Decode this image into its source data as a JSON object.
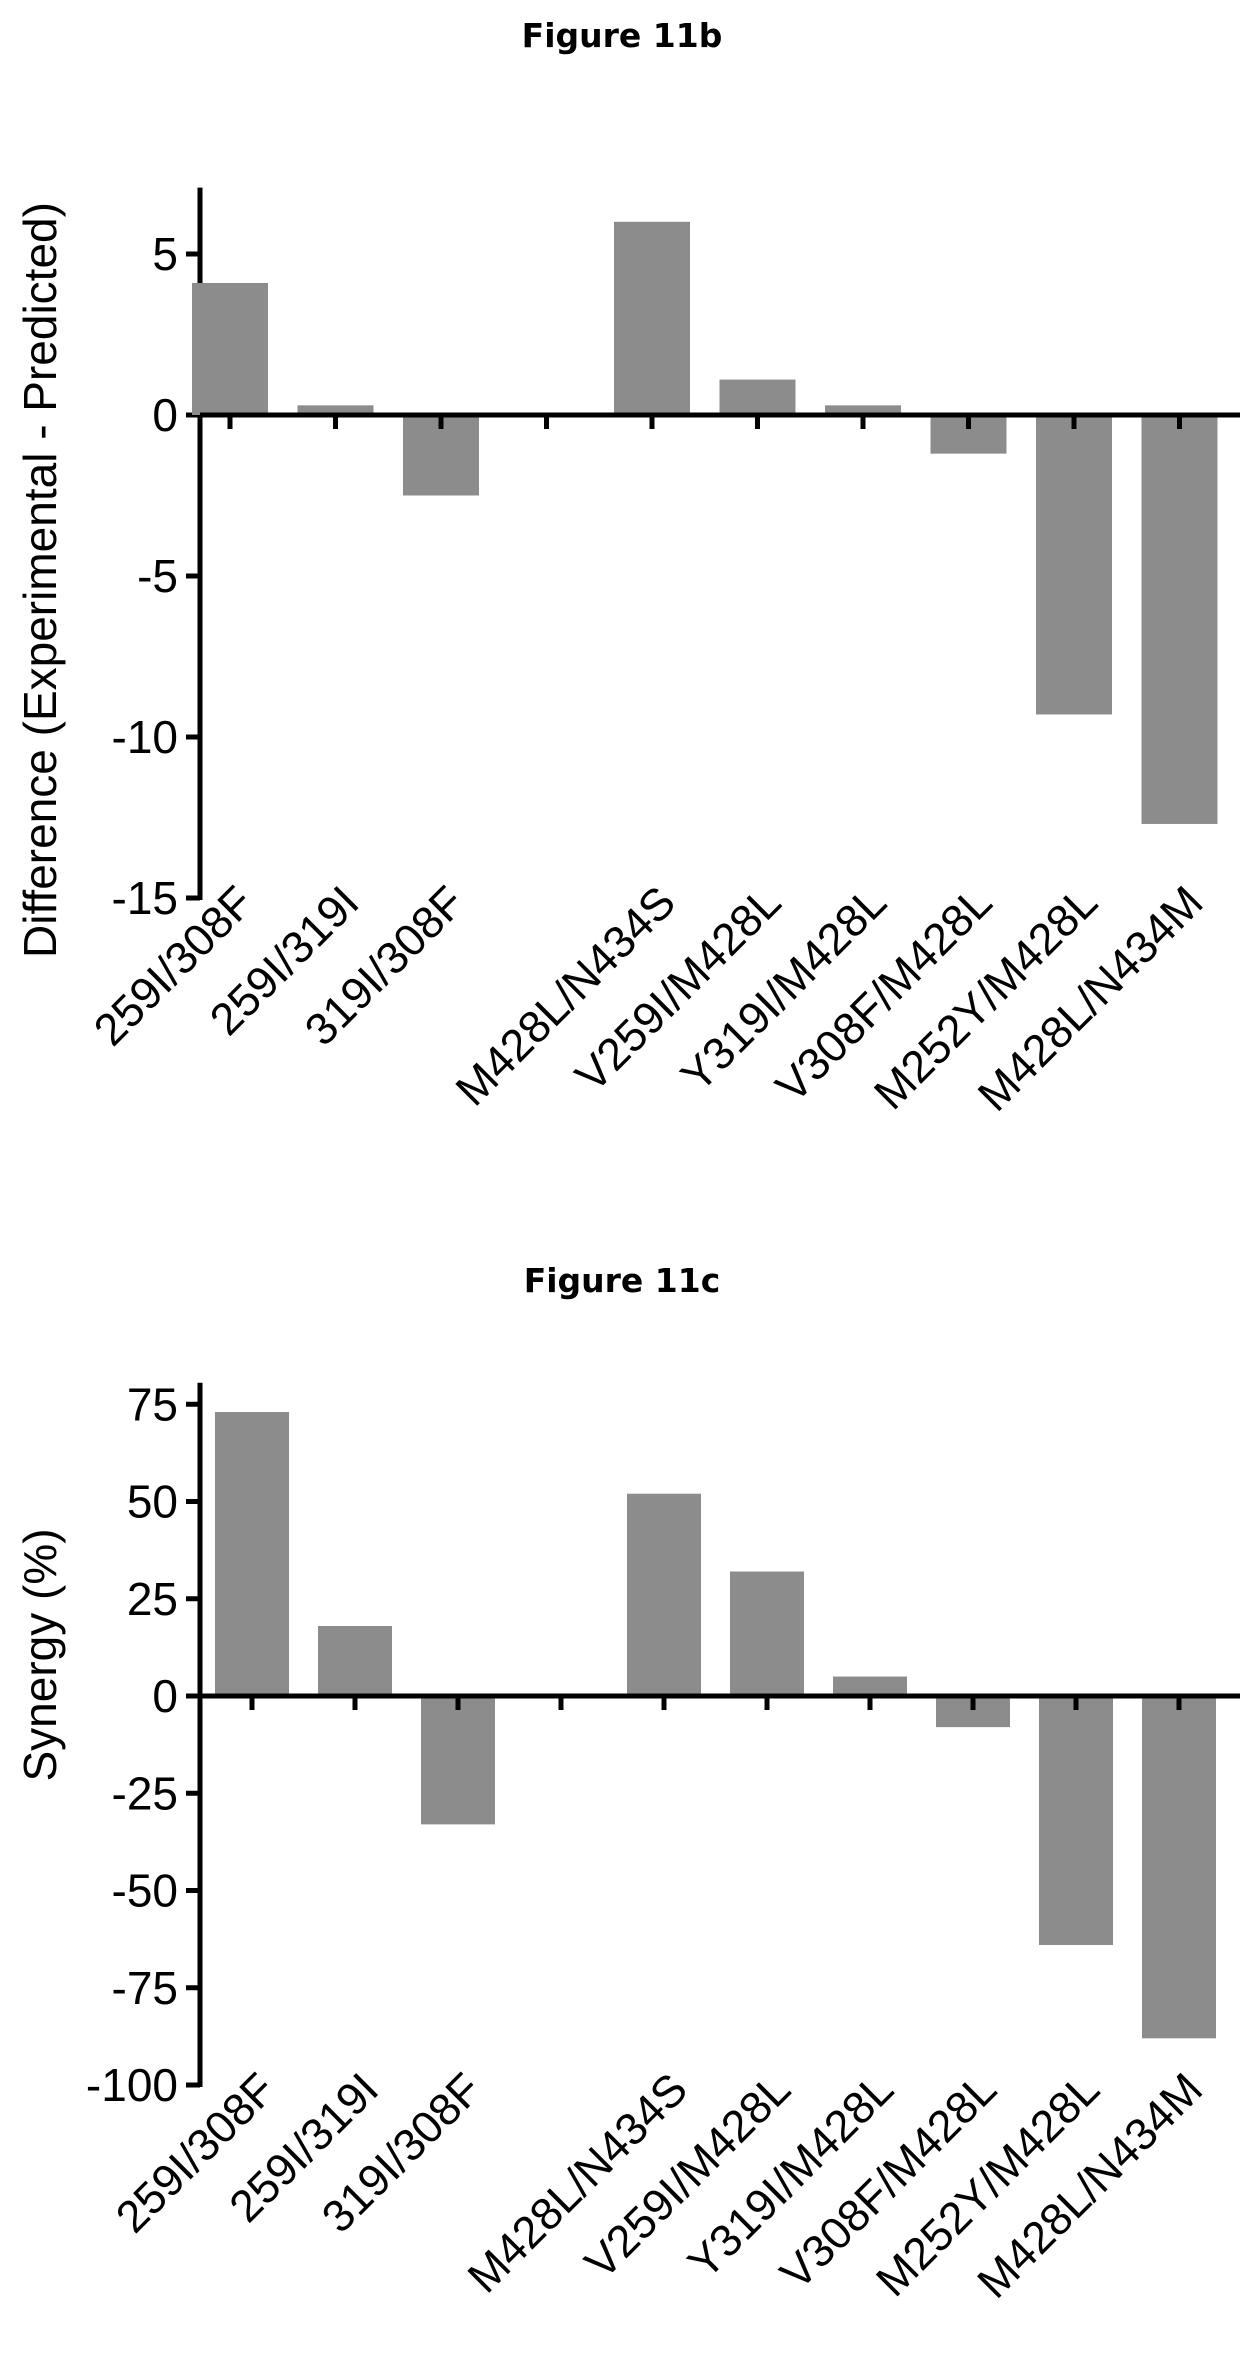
{
  "chart_data": [
    {
      "type": "bar",
      "title": "Figure 11b",
      "xlabel": "",
      "ylabel": "Difference (Experimental - Predicted)",
      "ylim": [
        -15,
        7
      ],
      "yticks": [
        5,
        0,
        -5,
        -10,
        -15
      ],
      "grid": false,
      "categories": [
        "259I/308F",
        "259I/319I",
        "319I/308F",
        "",
        "M428L/N434S",
        "V259I/M428L",
        "Y319I/M428L",
        "V308F/M428L",
        "M252Y/M428L",
        "M428L/N434M"
      ],
      "values": [
        4.1,
        0.3,
        -2.5,
        null,
        6.0,
        1.1,
        0.3,
        -1.2,
        -9.3,
        -12.7
      ]
    },
    {
      "type": "bar",
      "title": "Figure 11c",
      "xlabel": "",
      "ylabel": "Synergy (%)",
      "ylim": [
        -100,
        80
      ],
      "yticks": [
        75,
        50,
        25,
        0,
        -25,
        -50,
        -75,
        -100
      ],
      "grid": false,
      "categories": [
        "259I/308F",
        "259I/319I",
        "319I/308F",
        "",
        "M428L/N434S",
        "V259I/M428L",
        "Y319I/M428L",
        "V308F/M428L",
        "M252Y/M428L",
        "M428L/N434M"
      ],
      "values": [
        73,
        18,
        -33,
        null,
        52,
        32,
        5,
        -8,
        -64,
        -88
      ]
    }
  ]
}
